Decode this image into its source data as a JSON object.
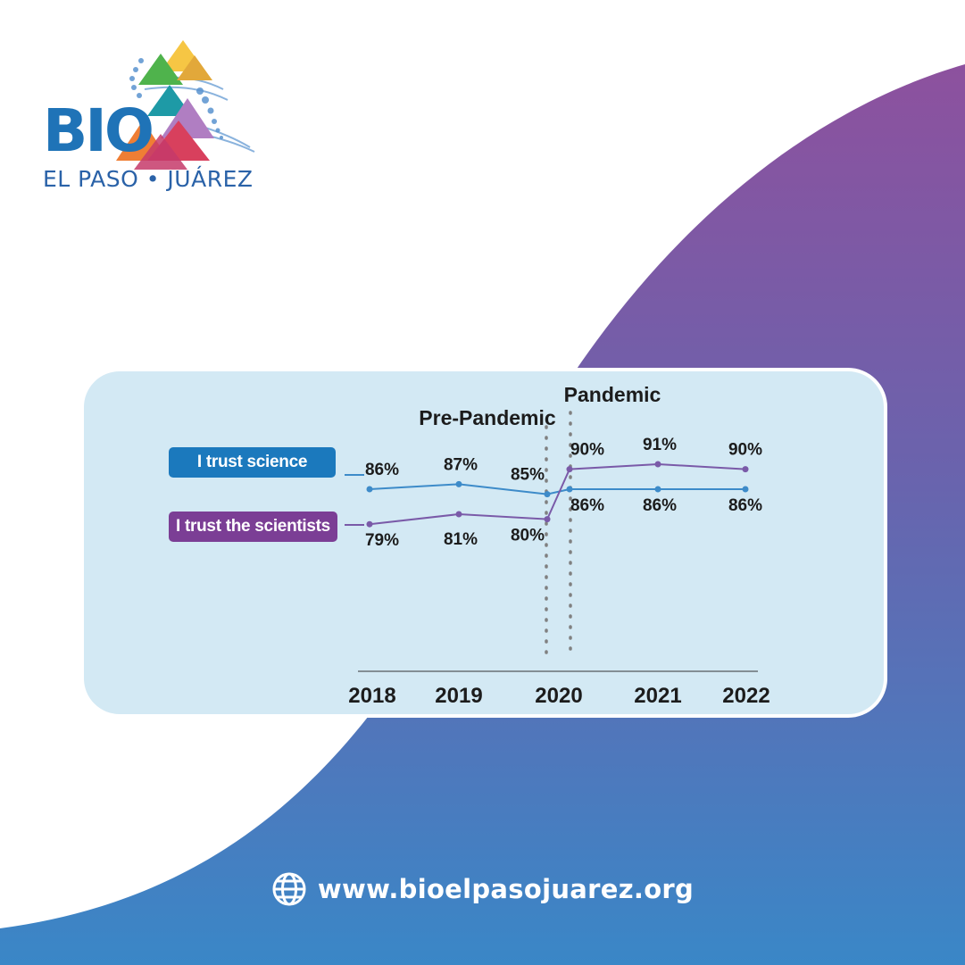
{
  "brand": {
    "name": "BIO",
    "subtitle": "EL PASO • JUÁREZ",
    "colors": {
      "primary": "#1f73b7",
      "purple": "#8a4f9e",
      "blue": "#3a86c8"
    }
  },
  "legend": [
    {
      "label": "I trust science",
      "color": "#1b79bd"
    },
    {
      "label": "I trust the scientists",
      "color": "#7b3e95"
    }
  ],
  "annotations": {
    "pre_pandemic": "Pre-Pandemic",
    "pandemic": "Pandemic"
  },
  "chart_data": {
    "type": "line",
    "categories": [
      "2018",
      "2019",
      "2020",
      "2020",
      "2021",
      "2022"
    ],
    "x_labels": [
      "2018",
      "2019",
      "2020",
      "2021",
      "2022"
    ],
    "series": [
      {
        "name": "I trust science",
        "values": [
          86,
          87,
          85,
          86,
          86,
          86
        ],
        "labels": [
          "86%",
          "87%",
          "85%",
          "86%",
          "86%",
          "86%"
        ],
        "color": "#3d8bc9"
      },
      {
        "name": "I trust the scientists",
        "values": [
          79,
          81,
          80,
          90,
          91,
          90
        ],
        "labels": [
          "79%",
          "81%",
          "80%",
          "90%",
          "91%",
          "90%"
        ],
        "color": "#7a5aa8"
      }
    ],
    "ylim": [
      70,
      100
    ],
    "grid": false,
    "legend_position": "left"
  },
  "footer": {
    "url": "www.bioelpasojuarez.org",
    "icon": "globe-icon"
  }
}
